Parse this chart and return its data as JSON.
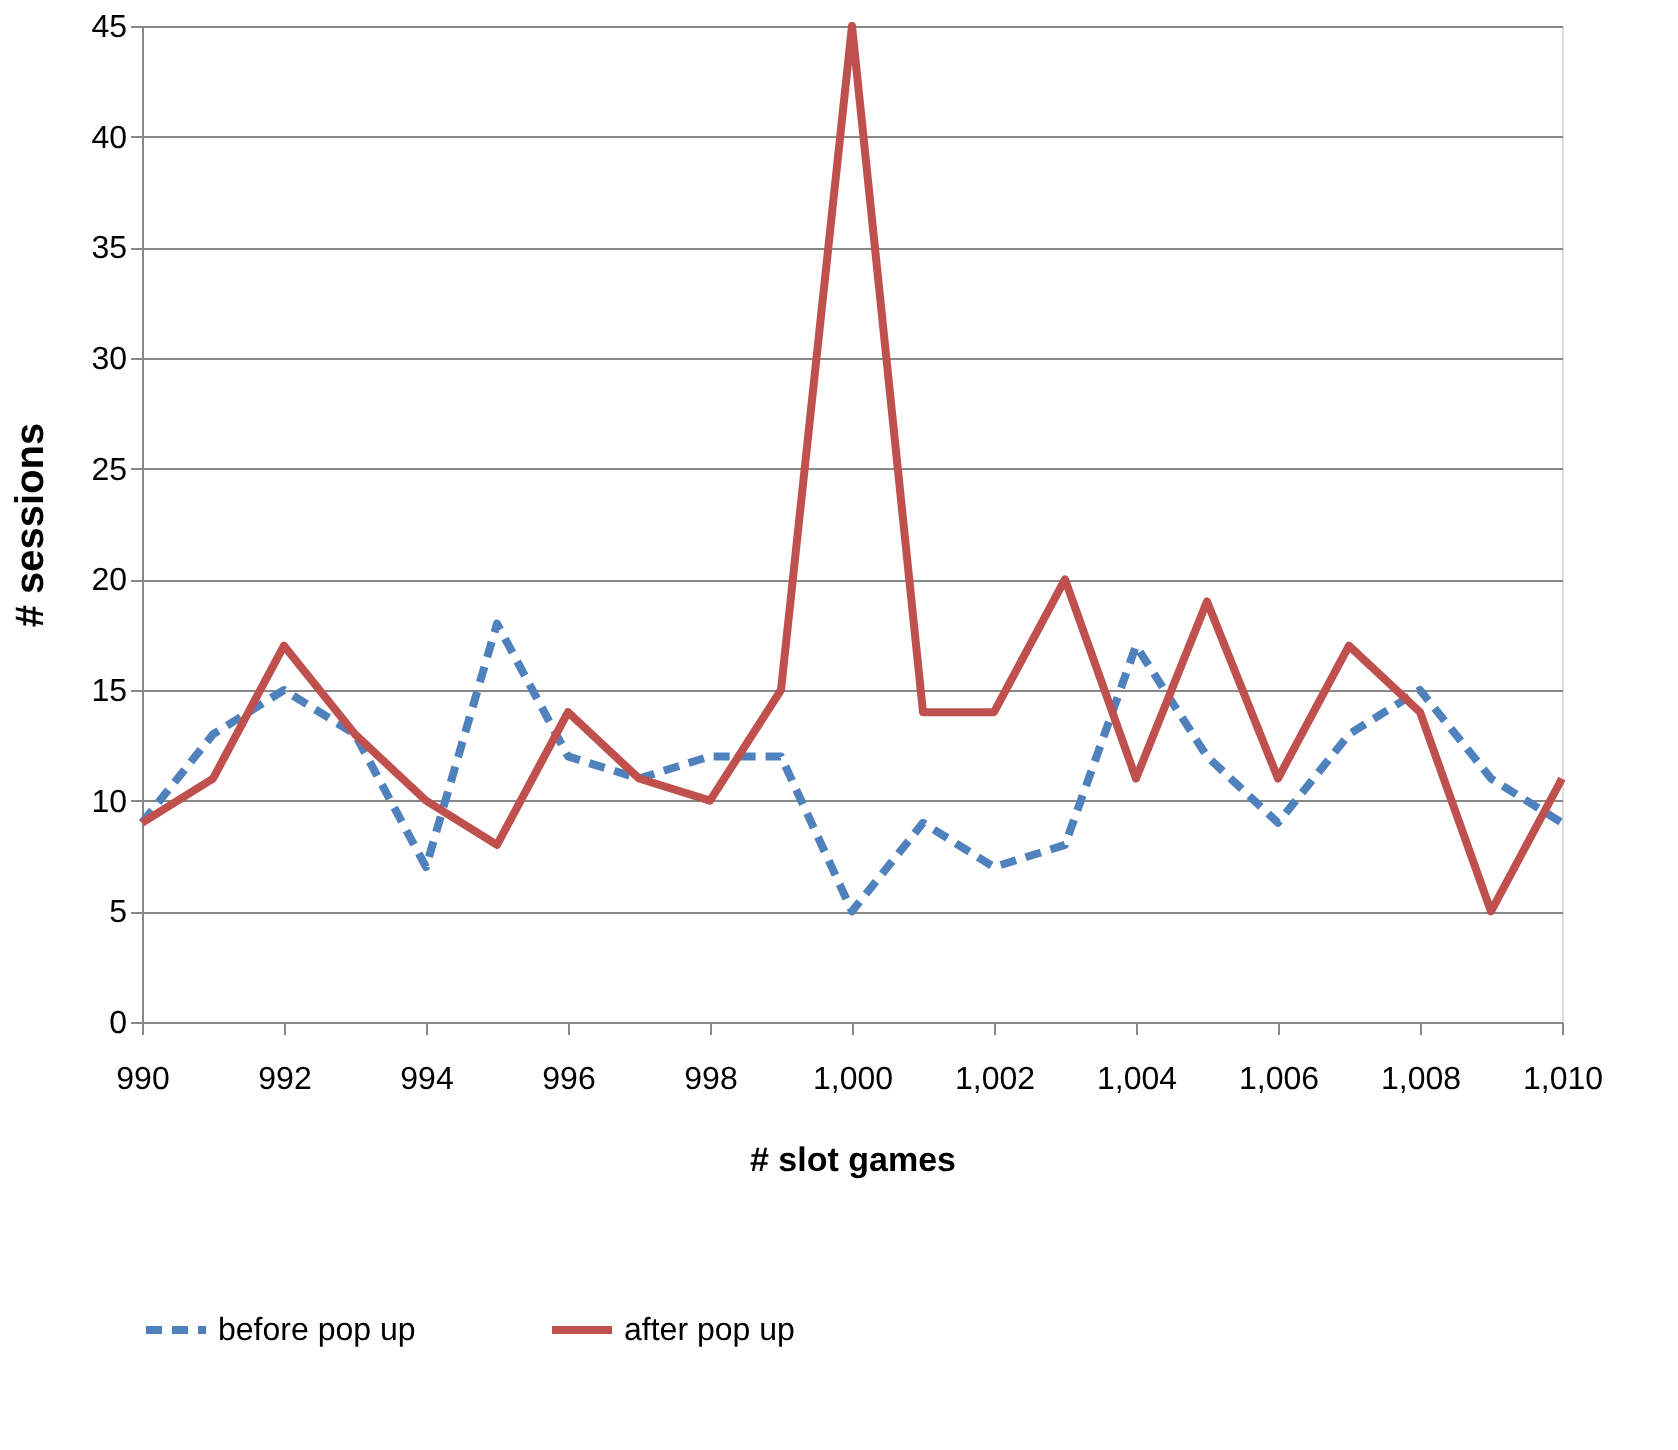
{
  "chart_data": {
    "type": "line",
    "xlabel": "# slot games",
    "ylabel": "# sessions",
    "x": [
      990,
      991,
      992,
      993,
      994,
      995,
      996,
      997,
      998,
      999,
      1000,
      1001,
      1002,
      1003,
      1004,
      1005,
      1006,
      1007,
      1008,
      1009,
      1010
    ],
    "series": [
      {
        "name": "before pop up",
        "color": "#4f81bd",
        "line_style": "dashed",
        "values": [
          9,
          13,
          15,
          13,
          7,
          18,
          12,
          11,
          12,
          12,
          5,
          9,
          7,
          8,
          17,
          12,
          9,
          13,
          15,
          11,
          9
        ]
      },
      {
        "name": "after pop up",
        "color": "#c0504d",
        "line_style": "solid",
        "values": [
          9,
          11,
          17,
          13,
          10,
          8,
          14,
          11,
          10,
          15,
          45,
          14,
          14,
          20,
          11,
          19,
          11,
          17,
          14,
          5,
          11
        ]
      }
    ],
    "xlim": [
      990,
      1010
    ],
    "xticks": [
      990,
      992,
      994,
      996,
      998,
      {
        "value": 1000,
        "label": "1,000"
      },
      {
        "value": 1002,
        "label": "1,002"
      },
      {
        "value": 1004,
        "label": "1,004"
      },
      {
        "value": 1006,
        "label": "1,006"
      },
      {
        "value": 1008,
        "label": "1,008"
      },
      {
        "value": 1010,
        "label": "1,010"
      }
    ],
    "ylim": [
      0,
      45
    ],
    "yticks": [
      0,
      5,
      10,
      15,
      20,
      25,
      30,
      35,
      40,
      45
    ],
    "grid": "y",
    "legend": "bottom",
    "marker": "none"
  }
}
